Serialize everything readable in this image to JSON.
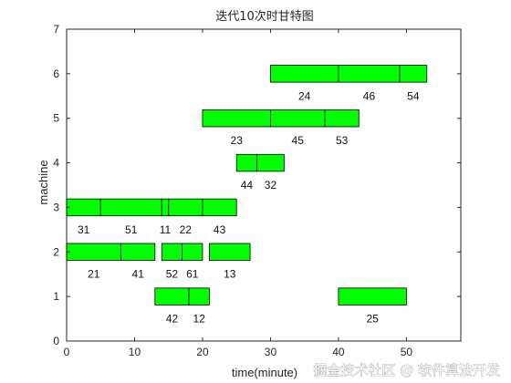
{
  "chart_data": {
    "type": "gantt",
    "title": "迭代10次时甘特图",
    "xlabel": "time(minute)",
    "ylabel": "machine",
    "xlim": [
      0,
      58
    ],
    "ylim": [
      0,
      7
    ],
    "xticks": [
      0,
      10,
      20,
      30,
      40,
      50
    ],
    "yticks": [
      0,
      1,
      2,
      3,
      4,
      5,
      6,
      7
    ],
    "bar_color": "#00ff00",
    "bar_edge_color": "#000000",
    "grid": false,
    "tasks": [
      {
        "machine": 6,
        "start": 30,
        "end": 40,
        "label": "24"
      },
      {
        "machine": 6,
        "start": 40,
        "end": 49,
        "label": "46"
      },
      {
        "machine": 6,
        "start": 49,
        "end": 53,
        "label": "54"
      },
      {
        "machine": 5,
        "start": 20,
        "end": 30,
        "label": "23"
      },
      {
        "machine": 5,
        "start": 30,
        "end": 38,
        "label": "45"
      },
      {
        "machine": 5,
        "start": 38,
        "end": 43,
        "label": "53"
      },
      {
        "machine": 4,
        "start": 25,
        "end": 28,
        "label": "44"
      },
      {
        "machine": 4,
        "start": 28,
        "end": 32,
        "label": "32"
      },
      {
        "machine": 3,
        "start": 0,
        "end": 5,
        "label": "31"
      },
      {
        "machine": 3,
        "start": 5,
        "end": 14,
        "label": "51"
      },
      {
        "machine": 3,
        "start": 14,
        "end": 15,
        "label": "11"
      },
      {
        "machine": 3,
        "start": 15,
        "end": 20,
        "label": "22"
      },
      {
        "machine": 3,
        "start": 20,
        "end": 25,
        "label": "43"
      },
      {
        "machine": 2,
        "start": 0,
        "end": 8,
        "label": "21"
      },
      {
        "machine": 2,
        "start": 8,
        "end": 13,
        "label": "41"
      },
      {
        "machine": 2,
        "start": 14,
        "end": 17,
        "label": "52"
      },
      {
        "machine": 2,
        "start": 17,
        "end": 20,
        "label": "61"
      },
      {
        "machine": 2,
        "start": 21,
        "end": 27,
        "label": "13"
      },
      {
        "machine": 1,
        "start": 13,
        "end": 18,
        "label": "42"
      },
      {
        "machine": 1,
        "start": 18,
        "end": 21,
        "label": "12"
      },
      {
        "machine": 1,
        "start": 40,
        "end": 50,
        "label": "25"
      }
    ]
  },
  "watermark": "掘金技术社区 @ 软件算法开发"
}
